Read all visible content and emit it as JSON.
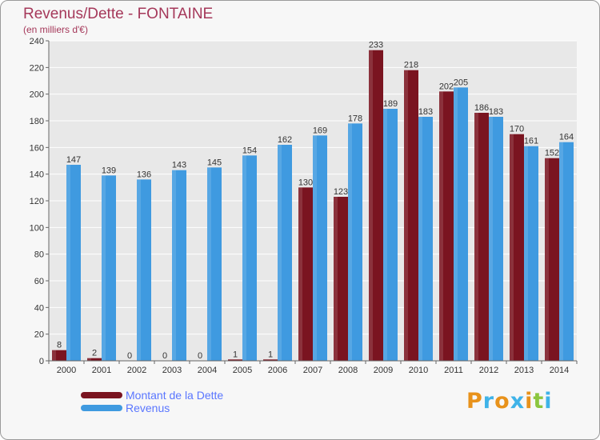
{
  "header": {
    "title": "Revenus/Dette - FONTAINE",
    "subtitle": "(en milliers d'€)"
  },
  "colors": {
    "dette": "#7a1420",
    "revenus": "#3f9ae0",
    "title": "#a5385a",
    "legend_text": "#5a76ff"
  },
  "legend": {
    "items": [
      {
        "label": "Montant de la Dette",
        "color": "#7a1420"
      },
      {
        "label": "Revenus",
        "color": "#3f9ae0"
      }
    ]
  },
  "brand": {
    "text": "Proxiti",
    "letter_colors": [
      "#e8921b",
      "#3fb3e8",
      "#e8921b",
      "#3fb3e8",
      "#e8921b",
      "#8cc63f",
      "#3fb3e8"
    ]
  },
  "chart_data": {
    "type": "bar",
    "categories": [
      "2000",
      "2001",
      "2002",
      "2003",
      "2004",
      "2005",
      "2006",
      "2007",
      "2008",
      "2009",
      "2010",
      "2011",
      "2012",
      "2013",
      "2014"
    ],
    "series": [
      {
        "name": "Montant de la Dette",
        "values": [
          8,
          2,
          0,
          0,
          0,
          1,
          1,
          130,
          123,
          233,
          218,
          202,
          186,
          170,
          152
        ]
      },
      {
        "name": "Revenus",
        "values": [
          147,
          139,
          136,
          143,
          145,
          154,
          162,
          169,
          178,
          189,
          183,
          205,
          183,
          161,
          164
        ]
      }
    ],
    "data_labels": [
      [
        "8",
        "2",
        "0",
        "0",
        "0",
        "1",
        "1",
        "130",
        "123",
        "233",
        "218",
        "202",
        "186",
        "170",
        "152"
      ],
      [
        "147",
        "139",
        "136",
        "143",
        "145",
        "154",
        "162",
        "169",
        "178",
        "189",
        "183",
        "205",
        "183",
        "161",
        "164"
      ]
    ],
    "yticks": [
      0,
      20,
      40,
      60,
      80,
      100,
      120,
      140,
      160,
      180,
      200,
      220,
      240
    ],
    "ylim": [
      0,
      240
    ],
    "grid": true,
    "legend_position": "bottom-left"
  }
}
